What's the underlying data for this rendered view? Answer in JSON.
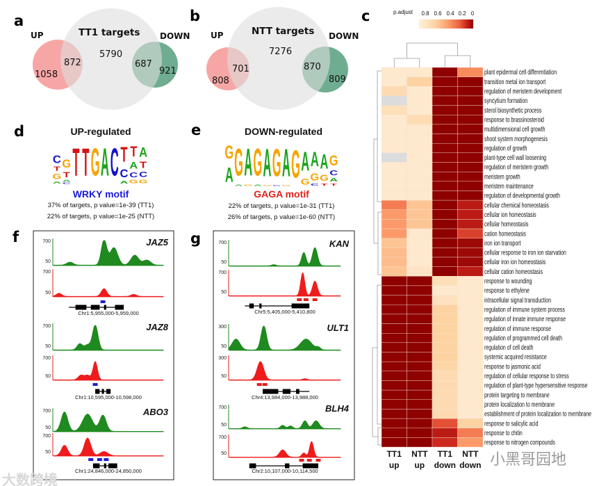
{
  "panels": {
    "a": {
      "letter": "a",
      "title": "TT1 targets",
      "up_label": "UP",
      "down_label": "DOWN",
      "total_only": "5790",
      "up_overlap": "872",
      "up_only": "1058",
      "down_overlap": "687",
      "down_only": "921"
    },
    "b": {
      "letter": "b",
      "title": "NTT targets",
      "up_label": "UP",
      "down_label": "DOWN",
      "total_only": "7276",
      "up_overlap": "701",
      "up_only": "808",
      "down_overlap": "870",
      "down_only": "809"
    },
    "c": {
      "letter": "c"
    },
    "d": {
      "letter": "d",
      "title": "UP-regulated",
      "motif": "WRKY motif",
      "motif_color": "#1a1adb",
      "stat1": "37% of targets, p value=1e-39 (TT1)",
      "stat2": "22% of targets, p value=1e-25 (NTT)",
      "logo": [
        [
          [
            "A",
            0.15
          ],
          [
            "G",
            0.4
          ],
          [
            "T",
            0.3
          ],
          [
            "C",
            0.55
          ]
        ],
        [
          [
            "C",
            0.08
          ],
          [
            "A",
            0.15
          ],
          [
            "T",
            0.4
          ],
          [
            "G",
            0.6
          ]
        ],
        [
          [
            "T",
            2
          ]
        ],
        [
          [
            "T",
            2
          ]
        ],
        [
          [
            "G",
            2
          ]
        ],
        [
          [
            "A",
            2
          ]
        ],
        [
          [
            "C",
            2
          ]
        ],
        [
          [
            "A",
            0.2
          ],
          [
            "C",
            0.6
          ],
          [
            "T",
            1.1
          ]
        ],
        [
          [
            "G",
            0.25
          ],
          [
            "C",
            0.35
          ],
          [
            "A",
            0.5
          ],
          [
            "T",
            0.75
          ]
        ],
        [
          [
            "G",
            0.25
          ],
          [
            "C",
            0.4
          ],
          [
            "T",
            0.45
          ],
          [
            "A",
            0.7
          ]
        ]
      ]
    },
    "e": {
      "letter": "e",
      "title": "DOWN-regulated",
      "motif": "GAGA motif",
      "motif_color": "#e0201c",
      "stat1": "22% of targets, p value=1e-31 (TT1)",
      "stat2": "26% of targets, p value=1e-60 (NTT)",
      "logo": [
        [
          [
            "A",
            1.0
          ],
          [
            "G",
            0.9
          ]
        ],
        [
          [
            "A",
            0.1
          ],
          [
            "G",
            1.85
          ]
        ],
        [
          [
            "G",
            0.1
          ],
          [
            "A",
            1.85
          ]
        ],
        [
          [
            "A",
            0.1
          ],
          [
            "G",
            1.85
          ]
        ],
        [
          [
            "G",
            0.05
          ],
          [
            "A",
            1.9
          ]
        ],
        [
          [
            "C",
            0.05
          ],
          [
            "G",
            1.9
          ]
        ],
        [
          [
            "G",
            0.05
          ],
          [
            "A",
            1.9
          ]
        ],
        [
          [
            "G",
            1.9
          ]
        ],
        [
          [
            "G",
            0.4
          ],
          [
            "A",
            1.3
          ]
        ],
        [
          [
            "C",
            0.15
          ],
          [
            "G",
            0.5
          ],
          [
            "A",
            1.0
          ]
        ],
        [
          [
            "T",
            0.15
          ],
          [
            "G",
            0.4
          ],
          [
            "A",
            1.0
          ]
        ],
        [
          [
            "T",
            0.15
          ],
          [
            "A",
            0.25
          ],
          [
            "C",
            0.35
          ],
          [
            "G",
            0.7
          ]
        ]
      ]
    },
    "f": {
      "letter": "f",
      "mark_color": "#1a1adb",
      "genes": [
        {
          "name": "JAZ5",
          "coord": "Chr1:5,955,000-5,959,000",
          "ymax": "700",
          "ymin": "50",
          "green": [
            [
              15,
              0.12,
              3
            ],
            [
              46,
              1,
              2.5
            ],
            [
              55,
              0.7,
              3.5
            ],
            [
              74,
              0.4,
              3.5
            ],
            [
              85,
              0.2,
              3.5
            ]
          ],
          "red": [
            [
              5,
              0.12,
              2.5
            ],
            [
              46,
              0.3,
              2.5
            ],
            [
              73,
              0.08,
              2.5
            ]
          ],
          "marks": [
            45
          ]
        },
        {
          "name": "JAZ8",
          "coord": "Chr1:10,595,000-10,598,000",
          "ymax": "700",
          "ymin": "50",
          "green": [
            [
              24,
              0.25,
              2.5
            ],
            [
              31,
              0.2,
              2.5
            ],
            [
              38,
              1,
              2.5
            ]
          ],
          "red": [
            [
              25,
              0.2,
              2.5
            ],
            [
              31,
              0.2,
              2.5
            ],
            [
              38,
              0.8,
              2
            ]
          ],
          "marks": [
            38
          ]
        },
        {
          "name": "ABO3",
          "coord": "Chr1:24,846,000-24,850,000",
          "ymax": "700",
          "ymin": "50",
          "green": [
            [
              10,
              0.9,
              3
            ],
            [
              31,
              0.8,
              4.5
            ],
            [
              45,
              0.75,
              3
            ]
          ],
          "red": [
            [
              10,
              0.5,
              2.8
            ],
            [
              31,
              0.85,
              3
            ],
            [
              46,
              0.2,
              3.5
            ]
          ],
          "marks": [
            34,
            42,
            48
          ]
        }
      ]
    },
    "g": {
      "letter": "g",
      "mark_color": "#e0201c",
      "genes": [
        {
          "name": "KAN",
          "coord": "Chr5:5,405,000-5,410,800",
          "ymax": "700",
          "ymin": "50",
          "green": [
            [
              40,
              0.05,
              2
            ],
            [
              67,
              0.55,
              2
            ],
            [
              77,
              0.75,
              2.3
            ]
          ],
          "red": [
            [
              66,
              0.95,
              1.8
            ],
            [
              77,
              0.6,
              2.2
            ]
          ],
          "marks": [
            63,
            69,
            77
          ]
        },
        {
          "name": "ULT1",
          "coord": "Chr4:13,984,000-13,988,000",
          "ymax": "300",
          "ymin": "50",
          "green": [
            [
              6,
              0.45,
              3.5
            ],
            [
              31,
              1,
              2.5
            ],
            [
              69,
              0.45,
              5
            ],
            [
              80,
              0.1,
              2
            ]
          ],
          "red": [
            [
              28,
              0.8,
              3
            ],
            [
              68,
              0.05,
              2
            ]
          ],
          "marks": [
            27,
            32
          ]
        },
        {
          "name": "BLH4",
          "coord": "Chr2:10,107,000-10,114,500",
          "ymax": "700",
          "ymin": "50",
          "green": [
            [
              14,
              0.08,
              2
            ],
            [
              48,
              0.15,
              2
            ],
            [
              55,
              0.12,
              2
            ],
            [
              68,
              0.35,
              2.2
            ],
            [
              78,
              0.35,
              2.8
            ]
          ],
          "red": [
            [
              48,
              0.35,
              2.8
            ],
            [
              67,
              0.2,
              1.8
            ],
            [
              74,
              0.75,
              1.8
            ]
          ],
          "marks": [
            65,
            72,
            80
          ]
        }
      ]
    }
  },
  "heatmap": {
    "legend_title": "p.adjust",
    "legend_ticks": [
      "0.8",
      "0.6",
      "0.4",
      "0.2",
      "0"
    ],
    "scale_colors": [
      "#8f0000",
      "#c8241a",
      "#ec5e3e",
      "#fb9a68",
      "#fdd3a2",
      "#fef0dc"
    ],
    "missing_color": "#dcdcdc",
    "columns": [
      [
        "TT1",
        "up"
      ],
      [
        "NTT",
        "up"
      ],
      [
        "TT1",
        "down"
      ],
      [
        "NTT",
        "down"
      ]
    ],
    "rows": [
      [
        "plant epidermal cell differentiation",
        [
          0.95,
          0.95,
          0,
          0.55
        ]
      ],
      [
        "transition metal ion transport",
        [
          0.95,
          0.8,
          0,
          0
        ]
      ],
      [
        "regulation of meristem development",
        [
          0.85,
          0.95,
          0,
          0
        ]
      ],
      [
        "syncytium formation",
        [
          null,
          0.95,
          0,
          0
        ]
      ],
      [
        "sterol biosynthetic process",
        [
          0.88,
          0.95,
          0,
          0
        ]
      ],
      [
        "response to brassinosteroid",
        [
          0.95,
          0.86,
          0,
          0
        ]
      ],
      [
        "multidimensional cell growth",
        [
          0.95,
          0.95,
          0,
          0
        ]
      ],
      [
        "shoot system morphogenesis",
        [
          0.95,
          0.95,
          0,
          0
        ]
      ],
      [
        "regulation of growth",
        [
          0.95,
          0.95,
          0,
          0
        ]
      ],
      [
        "plant-type cell wall loosening",
        [
          null,
          0.95,
          0,
          0
        ]
      ],
      [
        "regulation of meristem growth",
        [
          0.95,
          0.95,
          0,
          0
        ]
      ],
      [
        "meristem growth",
        [
          0.95,
          0.95,
          0,
          0
        ]
      ],
      [
        "meristem maintenance",
        [
          0.95,
          0.95,
          0,
          0
        ]
      ],
      [
        "regulation of developmental growth",
        [
          0.95,
          0.95,
          0,
          0
        ]
      ],
      [
        "cellular chemical homeostasis",
        [
          0.5,
          0.75,
          0,
          0.15
        ]
      ],
      [
        "cellular ion homeostasis",
        [
          0.6,
          0.75,
          0,
          0.15
        ]
      ],
      [
        "cellular homeostasis",
        [
          0.6,
          0.75,
          0,
          0.15
        ]
      ],
      [
        "cation homeostasis",
        [
          0.6,
          0.95,
          0,
          0.3
        ]
      ],
      [
        "iron ion transport",
        [
          0.75,
          0.95,
          0,
          0.05
        ]
      ],
      [
        "cellular response to iron ion starvation",
        [
          0.72,
          0.95,
          0,
          0.05
        ]
      ],
      [
        "cellular iron ion homeostasis",
        [
          0.72,
          0.95,
          0,
          0.05
        ]
      ],
      [
        "cellular cation homeostasis",
        [
          0.75,
          0.92,
          0,
          0.15
        ]
      ],
      [
        "response to wounding",
        [
          0,
          0,
          0.88,
          0.95
        ]
      ],
      [
        "response to ethylene",
        [
          0,
          0,
          0.95,
          0.95
        ]
      ],
      [
        "intracellular signal transduction",
        [
          0,
          0,
          0.9,
          0.95
        ]
      ],
      [
        "regulation of immune system process",
        [
          0,
          0,
          0.8,
          0.95
        ]
      ],
      [
        "regulation of innate immune response",
        [
          0,
          0,
          0.8,
          0.95
        ]
      ],
      [
        "regulation of immune response",
        [
          0,
          0,
          0.8,
          0.95
        ]
      ],
      [
        "regulation of programmed cell death",
        [
          0,
          0,
          0.8,
          0.95
        ]
      ],
      [
        "regulation of cell death",
        [
          0,
          0,
          0.8,
          0.95
        ]
      ],
      [
        "systemic acquired resistance",
        [
          0,
          0,
          0.8,
          0.95
        ]
      ],
      [
        "response to jasmonic acid",
        [
          0,
          0,
          0.82,
          0.95
        ]
      ],
      [
        "regulation of cellular response to stress",
        [
          0,
          0,
          0.85,
          0.95
        ]
      ],
      [
        "regulation of plant-type hypersensitive response",
        [
          0,
          0,
          0.85,
          0.95
        ]
      ],
      [
        "protein targeting to membrane",
        [
          0,
          0,
          0.85,
          0.95
        ]
      ],
      [
        "protein localization to membrane",
        [
          0,
          0,
          0.85,
          0.95
        ]
      ],
      [
        "establishment of protein localization to membrane",
        [
          0,
          0,
          0.85,
          0.95
        ]
      ],
      [
        "response to salicylic acid",
        [
          0,
          0,
          0.35,
          0.8
        ]
      ],
      [
        "response to chitin",
        [
          0,
          0,
          0.15,
          0.5
        ]
      ],
      [
        "response to nitrogen compounds",
        [
          0,
          0,
          0.22,
          0.6
        ]
      ]
    ]
  },
  "logo_colors": {
    "A": "#1ea41e",
    "C": "#1414c8",
    "G": "#f5a400",
    "T": "#d41414"
  },
  "track_colors": {
    "green": "#1f8a1f",
    "red": "#ee1c1c"
  },
  "watermarks": {
    "right": "小黑哥园地",
    "left": "大数跨境"
  }
}
